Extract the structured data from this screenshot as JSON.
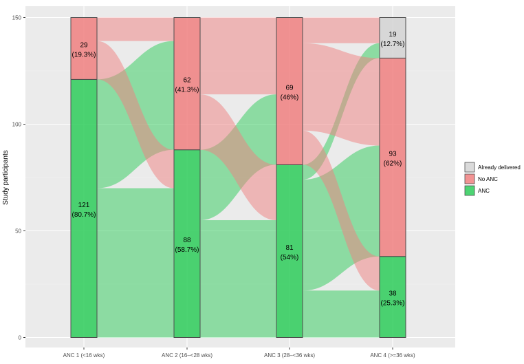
{
  "chart_data": {
    "type": "alluvial",
    "ylabel": "Study participants",
    "ylim": [
      0,
      150
    ],
    "yticks": [
      0,
      50,
      100,
      150
    ],
    "grid": true,
    "legend_position": "right",
    "legend": [
      {
        "key": "already_delivered",
        "label": "Already delivered",
        "color": "#d3d3d3"
      },
      {
        "key": "no_anc",
        "label": "No ANC",
        "color": "#f08080"
      },
      {
        "key": "anc",
        "label": "ANC",
        "color": "#2ecc5a"
      }
    ],
    "stages": [
      {
        "label": "ANC 1 (<16 wks)",
        "segments": [
          {
            "category": "anc",
            "count": 121,
            "pct": "(80.7%)"
          },
          {
            "category": "no_anc",
            "count": 29,
            "pct": "(19.3%)"
          }
        ]
      },
      {
        "label": "ANC 2 (16–<28 wks)",
        "segments": [
          {
            "category": "anc",
            "count": 88,
            "pct": "(58.7%)"
          },
          {
            "category": "no_anc",
            "count": 62,
            "pct": "(41.3%)"
          }
        ]
      },
      {
        "label": "ANC 3 (28–<36 wks)",
        "segments": [
          {
            "category": "anc",
            "count": 81,
            "pct": "(54%)"
          },
          {
            "category": "no_anc",
            "count": 69,
            "pct": "(46%)"
          }
        ]
      },
      {
        "label": "ANC 4 (>=36 wks)",
        "segments": [
          {
            "category": "anc",
            "count": 38,
            "pct": "(25.3%)"
          },
          {
            "category": "no_anc",
            "count": 93,
            "pct": "(62%)"
          },
          {
            "category": "already_delivered",
            "count": 19,
            "pct": "(12.7%)"
          }
        ]
      }
    ],
    "flows": [
      [
        {
          "from": "anc",
          "to": "anc",
          "value": 70
        },
        {
          "from": "anc",
          "to": "no_anc",
          "value": 51
        },
        {
          "from": "no_anc",
          "to": "anc",
          "value": 18
        },
        {
          "from": "no_anc",
          "to": "no_anc",
          "value": 11
        }
      ],
      [
        {
          "from": "anc",
          "to": "anc",
          "value": 55
        },
        {
          "from": "anc",
          "to": "no_anc",
          "value": 33
        },
        {
          "from": "no_anc",
          "to": "anc",
          "value": 26
        },
        {
          "from": "no_anc",
          "to": "no_anc",
          "value": 36
        }
      ],
      [
        {
          "from": "anc",
          "to": "anc",
          "value": 22
        },
        {
          "from": "anc",
          "to": "no_anc",
          "value": 52
        },
        {
          "from": "anc",
          "to": "already_delivered",
          "value": 7
        },
        {
          "from": "no_anc",
          "to": "anc",
          "value": 16
        },
        {
          "from": "no_anc",
          "to": "no_anc",
          "value": 41
        },
        {
          "from": "no_anc",
          "to": "already_delivered",
          "value": 12
        }
      ]
    ]
  }
}
